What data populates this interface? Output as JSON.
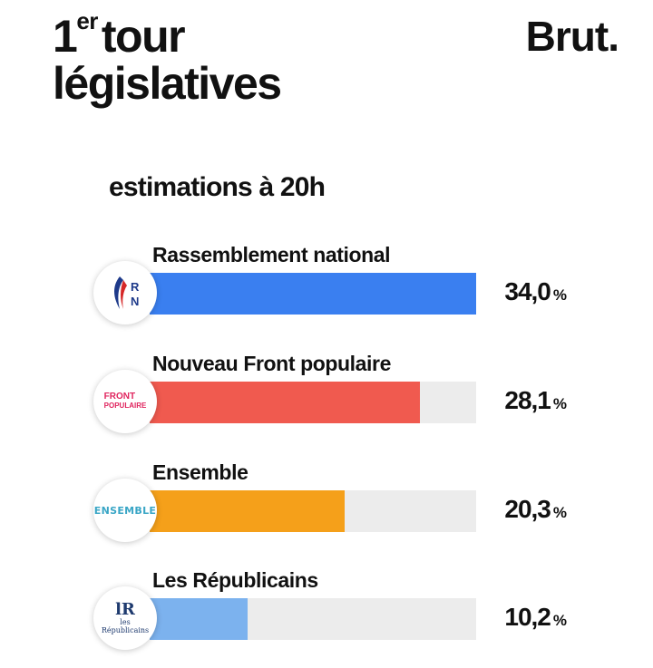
{
  "header": {
    "title_sup_prefix": "1",
    "title_sup": "er",
    "title_line1_rest": "tour",
    "title_line2": "législatives",
    "brand": "Brut."
  },
  "chart_data": {
    "type": "bar",
    "orientation": "horizontal",
    "title": "estimations à 20h",
    "categories": [
      "Rassemblement national",
      "Nouveau Front populaire",
      "Ensemble",
      "Les Républicains"
    ],
    "values": [
      34.0,
      28.1,
      20.3,
      10.2
    ],
    "value_labels": [
      "34,0",
      "28,1",
      "20,3",
      "10,2"
    ],
    "unit": "%",
    "colors": [
      "#3a7ff0",
      "#f05a4f",
      "#f5a01a",
      "#7cb2ee"
    ],
    "xlim": [
      0,
      34.0
    ],
    "grid": false,
    "logos": [
      {
        "icon": "rn-flame-logo",
        "text_1": "R",
        "text_2": "N"
      },
      {
        "icon": "nfp-logo",
        "text_1": "FRONT",
        "text_2": "POPULAIRE"
      },
      {
        "icon": "ensemble-logo",
        "text_1": "ENSEMBLE"
      },
      {
        "icon": "lr-logo",
        "text_1": "les",
        "text_2": "Républicains"
      }
    ]
  }
}
